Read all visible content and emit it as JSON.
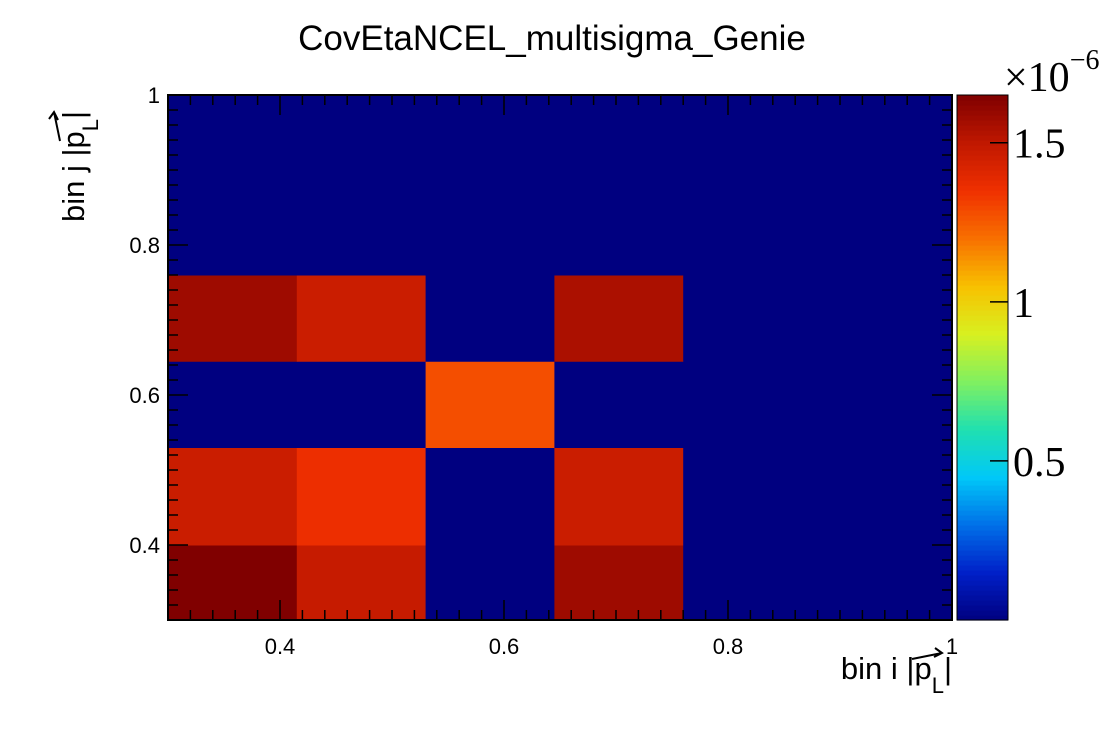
{
  "chart_data": {
    "type": "heatmap",
    "title": "CovEtaNCEL_multisigma_Genie",
    "xlabel": {
      "prefix": "bin i |",
      "p": "p",
      "sub": "L",
      "suffix": "|"
    },
    "ylabel": {
      "prefix": "bin j |",
      "p": "p",
      "sub": "L",
      "suffix": "|"
    },
    "x_tick_labels": [
      "0.4",
      "0.6",
      "0.8",
      "1"
    ],
    "y_tick_labels": [
      "0.4",
      "0.6",
      "0.8",
      "1"
    ],
    "xlim": [
      0.3,
      1.0
    ],
    "ylim": [
      0.3,
      1.0
    ],
    "x_edges": [
      0.3,
      0.415,
      0.53,
      0.645,
      0.76,
      1.0
    ],
    "y_edges": [
      0.3,
      0.4,
      0.53,
      0.645,
      0.76,
      1.0
    ],
    "values_rows_bottom_to_top": [
      [
        1.65e-06,
        1.48e-06,
        0.0,
        1.58e-06,
        0.0
      ],
      [
        1.47e-06,
        1.36e-06,
        0.0,
        1.47e-06,
        0.0
      ],
      [
        0.0,
        0.0,
        1.28e-06,
        0.0,
        0.0
      ],
      [
        1.58e-06,
        1.47e-06,
        0.0,
        1.55e-06,
        0.0
      ],
      [
        0.0,
        0.0,
        0.0,
        0.0,
        0.0
      ]
    ],
    "colorbar": {
      "exponent_label": "×10",
      "exponent_power": "−6",
      "tick_labels": [
        "0.5",
        "1",
        "1.5"
      ],
      "tick_values": [
        5e-07,
        1e-06,
        1.5e-06
      ],
      "zlim": [
        0.0,
        1.65e-06
      ],
      "colormap": [
        "#000080",
        "#0020c8",
        "#0070e8",
        "#00c8f8",
        "#20e0b0",
        "#80f060",
        "#d8f020",
        "#f8c000",
        "#f87000",
        "#f03000",
        "#c01800",
        "#800000"
      ]
    }
  }
}
